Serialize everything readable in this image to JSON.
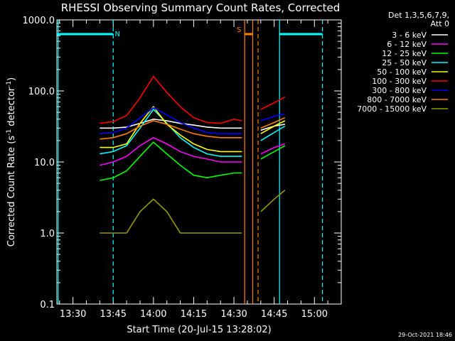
{
  "chart_data": {
    "type": "line",
    "title": "RHESSI Observing Summary Count Rates, Corrected",
    "xlabel": "Start Time (20-Jul-15 13:28:02)",
    "ylabel": "Corrected Count Rate (s⁻¹ detector⁻¹)",
    "ylabel_main": "Corrected Count Rate (s",
    "ylabel_sup1": "-1",
    "ylabel_mid": " detector",
    "ylabel_sup2": "-1",
    "ylabel_end": ")",
    "yscale": "log",
    "ylim": [
      0.1,
      1000
    ],
    "xlim": [
      "13:24",
      "15:10"
    ],
    "x_ticks": [
      "13:30",
      "13:45",
      "14:00",
      "14:15",
      "14:30",
      "14:45",
      "15:00"
    ],
    "y_ticks": [
      "0.1",
      "1.0",
      "10.0",
      "100.0",
      "1000.0"
    ],
    "legend_header": [
      "Det 1,3,5,6,7,9,",
      "Att 0"
    ],
    "legend_placement": "right",
    "timestamp": "29-Oct-2021 18:46",
    "flags": [
      {
        "label": "N",
        "color": "#00ffff",
        "segments": [
          [
            "13:24",
            "13:45"
          ],
          [
            "14:47",
            "15:03"
          ]
        ]
      },
      {
        "label": "S",
        "color": "#ff8000",
        "segments": [
          [
            "14:34",
            "14:37"
          ]
        ]
      }
    ],
    "vertical_lines": [
      {
        "time": "13:24.5",
        "color": "#00ffff",
        "style": "solid"
      },
      {
        "time": "13:45",
        "color": "#00ffff",
        "style": "dashed"
      },
      {
        "time": "14:34",
        "color": "#ff8000",
        "style": "solid"
      },
      {
        "time": "14:37",
        "color": "#ff8000",
        "style": "solid"
      },
      {
        "time": "14:39",
        "color": "#ff8000",
        "style": "dashed"
      },
      {
        "time": "14:47",
        "color": "#00ffff",
        "style": "solid"
      },
      {
        "time": "15:03",
        "color": "#00ffff",
        "style": "dashed"
      }
    ],
    "series": [
      {
        "name": "3 - 6 keV",
        "color": "#ffffff",
        "segments": [
          {
            "x": [
              "13:40",
              "13:45",
              "13:50",
              "13:55",
              "14:00",
              "14:05",
              "14:10",
              "14:15",
              "14:20",
              "14:25",
              "14:30",
              "14:33"
            ],
            "y": [
              30,
              30,
              31,
              35,
              40,
              38,
              35,
              33,
              31,
              30,
              30,
              30
            ]
          },
          {
            "x": [
              "14:40",
              "14:45",
              "14:49"
            ],
            "y": [
              28,
              32,
              34
            ]
          }
        ]
      },
      {
        "name": "6 - 12 keV",
        "color": "#ff00ff",
        "segments": [
          {
            "x": [
              "13:40",
              "13:45",
              "13:50",
              "13:55",
              "14:00",
              "14:05",
              "14:10",
              "14:15",
              "14:20",
              "14:25",
              "14:30",
              "14:33"
            ],
            "y": [
              9,
              10,
              12,
              17,
              22,
              18,
              14,
              12,
              11,
              10,
              10,
              10
            ]
          },
          {
            "x": [
              "14:40",
              "14:45",
              "14:49"
            ],
            "y": [
              13,
              16,
              18
            ]
          }
        ]
      },
      {
        "name": "12 - 25 keV",
        "color": "#00ff00",
        "segments": [
          {
            "x": [
              "13:40",
              "13:45",
              "13:50",
              "13:55",
              "14:00",
              "14:05",
              "14:10",
              "14:15",
              "14:20",
              "14:25",
              "14:30",
              "14:33"
            ],
            "y": [
              5.5,
              6,
              7.5,
              12,
              19,
              13,
              9,
              6.5,
              6,
              6.5,
              7,
              7
            ]
          },
          {
            "x": [
              "14:40",
              "14:45",
              "14:49"
            ],
            "y": [
              11,
              14,
              17
            ]
          }
        ]
      },
      {
        "name": "25 - 50 keV",
        "color": "#00ffff",
        "segments": [
          {
            "x": [
              "13:40",
              "13:45",
              "13:50",
              "13:55",
              "14:00",
              "14:05",
              "14:10",
              "14:15",
              "14:20",
              "14:25",
              "14:30",
              "14:33"
            ],
            "y": [
              13,
              14,
              17,
              30,
              55,
              35,
              22,
              16,
              13,
              12,
              12,
              12
            ]
          },
          {
            "x": [
              "14:40",
              "14:45",
              "14:49"
            ],
            "y": [
              20,
              26,
              32
            ]
          }
        ]
      },
      {
        "name": "50 - 100 keV",
        "color": "#ffff00",
        "segments": [
          {
            "x": [
              "13:40",
              "13:45",
              "13:50",
              "13:55",
              "14:00",
              "14:05",
              "14:10",
              "14:15",
              "14:20",
              "14:25",
              "14:30",
              "14:33"
            ],
            "y": [
              16,
              16,
              18,
              35,
              60,
              34,
              24,
              18,
              15,
              14,
              14,
              14
            ]
          },
          {
            "x": [
              "14:40",
              "14:45",
              "14:49"
            ],
            "y": [
              25,
              32,
              38
            ]
          }
        ]
      },
      {
        "name": "100 - 300 keV",
        "color": "#ff0000",
        "segments": [
          {
            "x": [
              "13:40",
              "13:45",
              "13:50",
              "13:55",
              "14:00",
              "14:05",
              "14:10",
              "14:15",
              "14:20",
              "14:25",
              "14:30",
              "14:33"
            ],
            "y": [
              35,
              37,
              45,
              80,
              160,
              95,
              60,
              42,
              36,
              35,
              40,
              38
            ]
          },
          {
            "x": [
              "14:40",
              "14:45",
              "14:49"
            ],
            "y": [
              55,
              68,
              82
            ]
          }
        ]
      },
      {
        "name": "300 - 800 keV",
        "color": "#0000ff",
        "segments": [
          {
            "x": [
              "13:40",
              "13:45",
              "13:50",
              "13:55",
              "14:00",
              "14:05",
              "14:10",
              "14:15",
              "14:20",
              "14:25",
              "14:30",
              "14:33"
            ],
            "y": [
              25,
              26,
              30,
              42,
              58,
              46,
              36,
              30,
              26,
              25,
              25,
              25
            ]
          },
          {
            "x": [
              "14:40",
              "14:45",
              "14:49"
            ],
            "y": [
              38,
              44,
              48
            ]
          }
        ]
      },
      {
        "name": "800 - 7000 keV",
        "color": "#ff8000",
        "segments": [
          {
            "x": [
              "13:40",
              "13:45",
              "13:50",
              "13:55",
              "14:00",
              "14:05",
              "14:10",
              "14:15",
              "14:20",
              "14:25",
              "14:30",
              "14:33"
            ],
            "y": [
              21,
              22,
              25,
              32,
              38,
              34,
              29,
              25,
              23,
              22,
              22,
              22
            ]
          },
          {
            "x": [
              "14:40",
              "14:45",
              "14:49"
            ],
            "y": [
              30,
              36,
              42
            ]
          }
        ]
      },
      {
        "name": "7000 - 15000 keV",
        "color": "#999900",
        "segments": [
          {
            "x": [
              "13:40",
              "13:45",
              "13:50",
              "13:55",
              "14:00",
              "14:05",
              "14:10",
              "14:15",
              "14:20",
              "14:25",
              "14:30",
              "14:33"
            ],
            "y": [
              1,
              1,
              1,
              2,
              3,
              2,
              1,
              1,
              1,
              1,
              1,
              1
            ]
          },
          {
            "x": [
              "14:40",
              "14:45",
              "14:49"
            ],
            "y": [
              2,
              3,
              4
            ]
          }
        ]
      }
    ]
  }
}
